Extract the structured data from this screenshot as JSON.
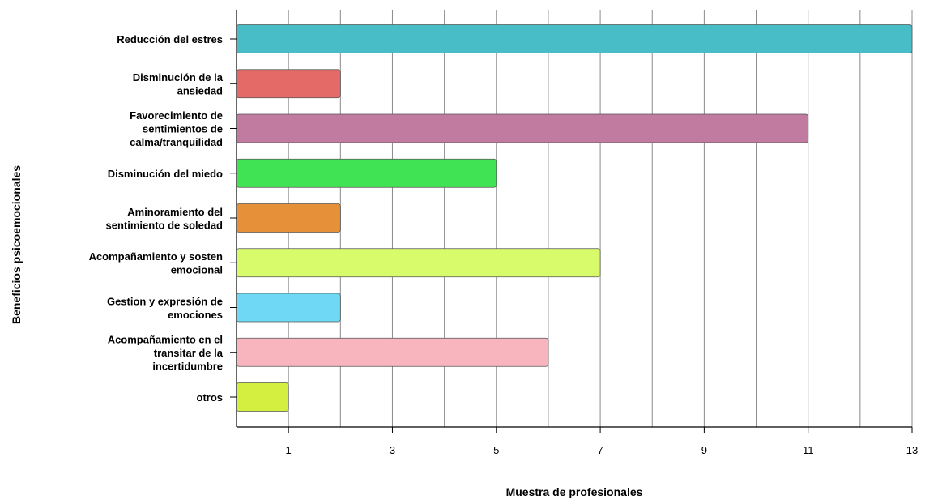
{
  "chart_data": {
    "type": "bar",
    "orientation": "horizontal",
    "xlabel": "Muestra de profesionales",
    "ylabel": "Beneficios psicoemocionales",
    "xlim": [
      0,
      13
    ],
    "x_tick_labels": [
      1,
      3,
      5,
      7,
      9,
      11,
      13
    ],
    "grid": "vertical",
    "categories": [
      {
        "lines": [
          "Reducción del estres"
        ],
        "value": 13,
        "color": "#48bdc8"
      },
      {
        "lines": [
          "Disminución de la",
          "ansiedad"
        ],
        "value": 2,
        "color": "#e36a66"
      },
      {
        "lines": [
          "Favorecimiento de",
          "sentimientos de",
          "calma/tranquilidad"
        ],
        "value": 11,
        "color": "#c17aa0"
      },
      {
        "lines": [
          "Disminución del miedo"
        ],
        "value": 5,
        "color": "#3fe354"
      },
      {
        "lines": [
          "Aminoramiento del",
          "sentimiento de soledad"
        ],
        "value": 2,
        "color": "#e6913a"
      },
      {
        "lines": [
          "Acompañamiento y sosten",
          "emocional"
        ],
        "value": 7,
        "color": "#d7fb6a"
      },
      {
        "lines": [
          "Gestion y expresión de",
          "emociones"
        ],
        "value": 2,
        "color": "#6fd8f5"
      },
      {
        "lines": [
          "Acompañamiento en el",
          "transitar de la",
          "incertidumbre"
        ],
        "value": 6,
        "color": "#f9b5bd"
      },
      {
        "lines": [
          "otros"
        ],
        "value": 1,
        "color": "#d4ef3f"
      }
    ]
  }
}
